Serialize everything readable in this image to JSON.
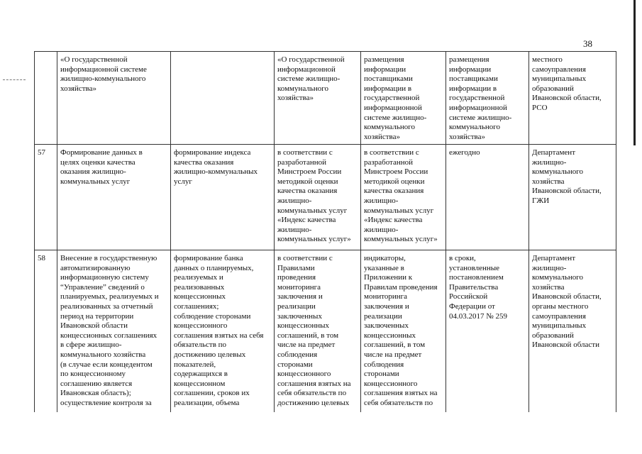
{
  "page_number": "38",
  "table": {
    "rows": [
      {
        "cells": [
          [
            "«О государственной",
            "информационной системе",
            "жилищно-коммунального",
            "хозяйства»"
          ],
          [],
          [
            "«О государственной",
            "информационной",
            "системе жилищно-",
            "коммунального",
            "хозяйства»"
          ],
          [
            "размещения",
            "информации",
            "поставщиками",
            "информации в",
            "государственной",
            "информационной",
            "системе жилищно-",
            "коммунального",
            "хозяйства»"
          ],
          [
            "размещения",
            "информации",
            "поставщиками",
            "информации в",
            "государственной",
            "информационной",
            "системе жилищно-",
            "коммунального",
            "хозяйства»"
          ],
          [
            "местного",
            "самоуправления",
            "муниципальных",
            "образований",
            "Ивановской области,",
            "РСО"
          ]
        ]
      },
      {
        "number": "57",
        "cells": [
          [
            "Формирование данных в",
            "целях оценки качества",
            "оказания жилищно-",
            "коммунальных услуг"
          ],
          [
            "формирование индекса",
            "качества оказания",
            "жилищно-коммунальных",
            "услуг"
          ],
          [
            "в соответствии с",
            "разработанной",
            "Минстроем России",
            "методикой оценки",
            "качества оказания",
            "жилищно-",
            "коммунальных услуг",
            "«Индекс качества",
            "жилищно-",
            "коммунальных услуг»"
          ],
          [
            "в соответствии с",
            "разработанной",
            "Минстроем России",
            "методикой оценки",
            "качества оказания",
            "жилищно-",
            "коммунальных услуг",
            "«Индекс качества",
            "жилищно-",
            "коммунальных услуг»"
          ],
          [
            "ежегодно"
          ],
          [
            "Департамент",
            "жилищно-",
            "коммунального",
            "хозяйства",
            "Ивановской области,",
            "ГЖИ"
          ]
        ]
      },
      {
        "number": "58",
        "cells": [
          [
            "Внесение в государственную",
            "автоматизированную",
            "информационную систему",
            "“Управление” сведений о",
            "планируемых, реализуемых и",
            "реализованных за отчетный",
            "период на территории",
            "Ивановской области",
            "концессионных соглашениях",
            "в сфере жилищно-",
            "коммунального хозяйства",
            "(в случае если концедентом",
            "по концессионному",
            "соглашению является",
            "Ивановская область);",
            "осуществление контроля за"
          ],
          [
            "формирование банка",
            "данных о планируемых,",
            "реализуемых и",
            "реализованных",
            "концессионных",
            "соглашениях;",
            "соблюдение сторонами",
            "концессионного",
            "соглашения взятых на себя",
            "обязательств по",
            "достижению целевых",
            "показателей,",
            "содержащихся в",
            "концессионном",
            "соглашении, сроков их",
            "реализации, объема"
          ],
          [
            "в соответствии с",
            "Правилами",
            "проведения",
            "мониторинга",
            "заключения и",
            "реализации",
            "заключенных",
            "концессионных",
            "соглашений, в том",
            "числе на предмет",
            "соблюдения",
            "сторонами",
            "концессионного",
            "соглашения взятых на",
            "себя обязательств по",
            "достижению целевых"
          ],
          [
            "индикаторы,",
            "указанные в",
            "Приложении к",
            "Правилам проведения",
            "мониторинга",
            "заключения и",
            "реализации",
            "заключенных",
            "концессионных",
            "соглашений, в том",
            "числе на предмет",
            "соблюдения",
            "сторонами",
            "концессионного",
            "соглашения взятых на",
            "себя обязательств по"
          ],
          [
            "в сроки,",
            "установленные",
            "постановлением",
            "Правительства",
            "Российской",
            "Федерации от",
            "04.03.2017 № 259"
          ],
          [
            "Департамент",
            "жилищно-",
            "коммунального",
            "хозяйства",
            "Ивановской области,",
            "органы местного",
            "самоуправления",
            "муниципальных",
            "образований",
            "Ивановской области"
          ]
        ]
      }
    ]
  }
}
